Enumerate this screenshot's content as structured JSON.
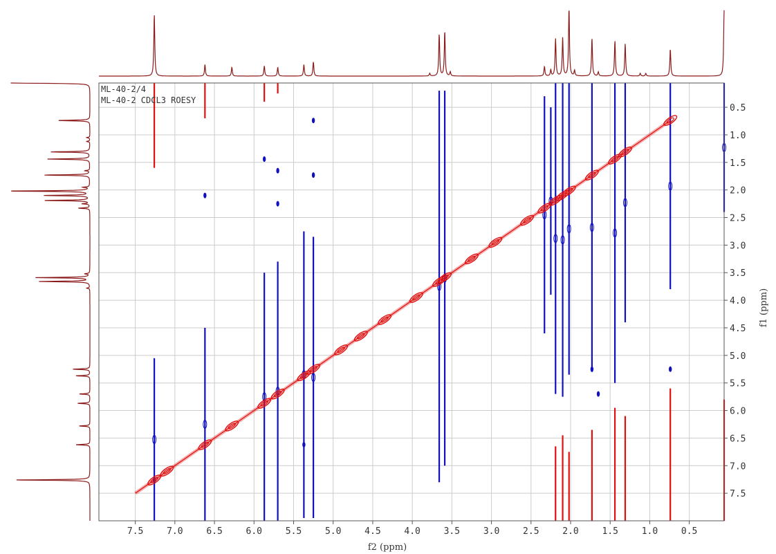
{
  "chart_data": {
    "type": "heatmap",
    "title": "",
    "annotations": [
      "ML-40-2/4",
      "ML-40-2 CDCL3 ROESY"
    ],
    "xlabel": "f2 (ppm)",
    "ylabel": "f1 (ppm)",
    "xlim": [
      7.96,
      0.06
    ],
    "ylim": [
      0.06,
      8.0
    ],
    "x_reversed": true,
    "y_reversed": true,
    "grid": true,
    "x_ticks": [
      "7.5",
      "7.0",
      "6.5",
      "6.0",
      "5.5",
      "5.0",
      "4.5",
      "4.0",
      "3.5",
      "3.0",
      "2.5",
      "2.0",
      "1.5",
      "1.0",
      "0.5"
    ],
    "y_ticks": [
      "0.5",
      "1.0",
      "1.5",
      "2.0",
      "2.5",
      "3.0",
      "3.5",
      "4.0",
      "4.5",
      "5.0",
      "5.5",
      "6.0",
      "6.5",
      "7.0",
      "7.5"
    ],
    "colors": {
      "positive": "#e01010",
      "negative": "#1010c0",
      "projection": "#8b1a1a",
      "grid": "#cccccc"
    },
    "projection_peaks": [
      {
        "ppm": 7.26,
        "h": 0.92
      },
      {
        "ppm": 6.62,
        "h": 0.17
      },
      {
        "ppm": 6.28,
        "h": 0.13
      },
      {
        "ppm": 5.87,
        "h": 0.15
      },
      {
        "ppm": 5.7,
        "h": 0.13
      },
      {
        "ppm": 5.37,
        "h": 0.17
      },
      {
        "ppm": 5.25,
        "h": 0.21
      },
      {
        "ppm": 3.66,
        "h": 0.62
      },
      {
        "ppm": 3.59,
        "h": 0.66
      },
      {
        "ppm": 3.52,
        "h": 0.06
      },
      {
        "ppm": 3.78,
        "h": 0.04
      },
      {
        "ppm": 2.33,
        "h": 0.14
      },
      {
        "ppm": 2.25,
        "h": 0.09
      },
      {
        "ppm": 2.19,
        "h": 0.55
      },
      {
        "ppm": 2.1,
        "h": 0.57
      },
      {
        "ppm": 2.02,
        "h": 1.0
      },
      {
        "ppm": 1.95,
        "h": 0.08
      },
      {
        "ppm": 1.73,
        "h": 0.56
      },
      {
        "ppm": 1.65,
        "h": 0.06
      },
      {
        "ppm": 1.44,
        "h": 0.52
      },
      {
        "ppm": 1.31,
        "h": 0.48
      },
      {
        "ppm": 1.12,
        "h": 0.04
      },
      {
        "ppm": 1.05,
        "h": 0.04
      },
      {
        "ppm": 0.74,
        "h": 0.4
      },
      {
        "ppm": 0.06,
        "h": 0.97
      }
    ],
    "diagonal_peaks": [
      7.26,
      7.1,
      6.62,
      6.28,
      5.87,
      5.7,
      5.37,
      5.25,
      4.9,
      4.65,
      4.35,
      3.95,
      3.66,
      3.59,
      3.25,
      2.95,
      2.55,
      2.33,
      2.19,
      2.1,
      2.02,
      1.73,
      1.44,
      1.31,
      0.74
    ],
    "negative_streaks": [
      {
        "x": 7.26,
        "y1": 5.05,
        "y2": 8.0
      },
      {
        "x": 6.62,
        "y1": 4.5,
        "y2": 8.0
      },
      {
        "x": 5.87,
        "y1": 3.5,
        "y2": 8.0
      },
      {
        "x": 5.7,
        "y1": 3.3,
        "y2": 8.0
      },
      {
        "x": 5.37,
        "y1": 2.75,
        "y2": 7.95
      },
      {
        "x": 5.25,
        "y1": 2.85,
        "y2": 7.95
      },
      {
        "x": 3.66,
        "y1": 0.2,
        "y2": 7.3
      },
      {
        "x": 3.59,
        "y1": 0.2,
        "y2": 7.0
      },
      {
        "x": 2.33,
        "y1": 0.3,
        "y2": 4.6
      },
      {
        "x": 2.25,
        "y1": 0.5,
        "y2": 3.9
      },
      {
        "x": 2.19,
        "y1": 0.06,
        "y2": 5.7
      },
      {
        "x": 2.1,
        "y1": 0.06,
        "y2": 5.75
      },
      {
        "x": 2.02,
        "y1": 0.06,
        "y2": 5.35
      },
      {
        "x": 1.73,
        "y1": 0.06,
        "y2": 5.3
      },
      {
        "x": 1.44,
        "y1": 0.06,
        "y2": 5.5
      },
      {
        "x": 1.31,
        "y1": 0.06,
        "y2": 4.4
      },
      {
        "x": 0.74,
        "y1": 0.06,
        "y2": 3.8
      },
      {
        "x": 0.06,
        "y1": 0.06,
        "y2": 2.4
      }
    ],
    "positive_streaks": [
      {
        "x": 7.26,
        "y1": 0.06,
        "y2": 1.6
      },
      {
        "x": 6.62,
        "y1": 0.06,
        "y2": 0.7
      },
      {
        "x": 5.87,
        "y1": 0.06,
        "y2": 0.4
      },
      {
        "x": 5.7,
        "y1": 0.06,
        "y2": 0.25
      },
      {
        "x": 2.19,
        "y1": 6.65,
        "y2": 8.0
      },
      {
        "x": 2.1,
        "y1": 6.45,
        "y2": 8.0
      },
      {
        "x": 2.02,
        "y1": 6.75,
        "y2": 8.0
      },
      {
        "x": 1.73,
        "y1": 6.35,
        "y2": 8.0
      },
      {
        "x": 1.44,
        "y1": 5.95,
        "y2": 8.0
      },
      {
        "x": 1.31,
        "y1": 6.1,
        "y2": 8.0
      },
      {
        "x": 0.74,
        "y1": 5.6,
        "y2": 8.0
      },
      {
        "x": 0.06,
        "y1": 5.8,
        "y2": 8.0
      }
    ],
    "negative_crosspeaks": [
      {
        "x": 5.25,
        "y": 0.74
      },
      {
        "x": 5.87,
        "y": 1.44
      },
      {
        "x": 5.7,
        "y": 1.65
      },
      {
        "x": 5.25,
        "y": 1.73
      },
      {
        "x": 5.7,
        "y": 2.25
      },
      {
        "x": 5.37,
        "y": 6.62
      },
      {
        "x": 6.62,
        "y": 2.1
      },
      {
        "x": 1.73,
        "y": 5.25
      },
      {
        "x": 0.74,
        "y": 5.25
      },
      {
        "x": 1.65,
        "y": 5.7
      },
      {
        "x": 7.26,
        "y": 7.26
      }
    ]
  }
}
